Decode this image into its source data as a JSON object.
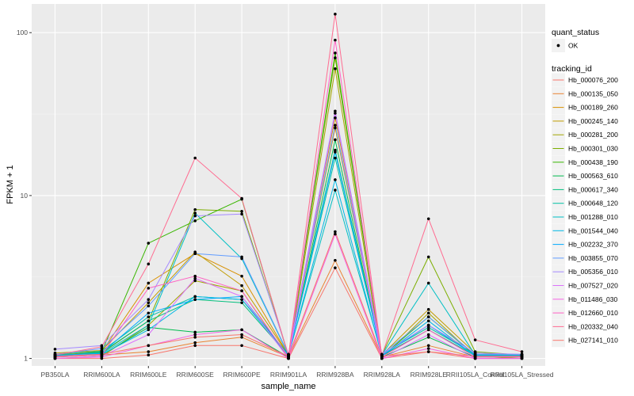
{
  "chart_data": {
    "type": "line",
    "xlabel": "sample_name",
    "ylabel": "FPKM + 1",
    "y_scale": "log10",
    "ylim": [
      0.9,
      150
    ],
    "y_ticks": [
      {
        "value": 1,
        "label": "1"
      },
      {
        "value": 10,
        "label": "10"
      },
      {
        "value": 100,
        "label": "100"
      }
    ],
    "categories": [
      "PB350LA",
      "RRIM600LA",
      "RRIM600LE",
      "RRIM600SE",
      "RRIM600PE",
      "RRIM901LA",
      "RRIM928BA",
      "RRIM928LA",
      "RRIM928LE",
      "RRII105LA_Control",
      "RRII105LA_Stressed"
    ],
    "legend_shape": {
      "title": "quant_status",
      "entries": [
        "OK"
      ]
    },
    "legend_color_title": "tracking_id",
    "series": [
      {
        "name": "Hb_000076_200",
        "color": "#F8766D",
        "values": [
          1.0,
          1.0,
          1.05,
          1.2,
          1.2,
          1.0,
          3.6,
          1.0,
          1.1,
          1.0,
          1.0
        ]
      },
      {
        "name": "Hb_000135_050",
        "color": "#EA8331",
        "values": [
          1.02,
          1.05,
          1.1,
          1.25,
          1.35,
          1.02,
          4.0,
          1.02,
          1.2,
          1.02,
          1.02
        ]
      },
      {
        "name": "Hb_000189_260",
        "color": "#D89000",
        "values": [
          1.05,
          1.1,
          2.9,
          4.4,
          3.2,
          1.05,
          26.0,
          1.05,
          1.6,
          1.05,
          1.05
        ]
      },
      {
        "name": "Hb_000245_140",
        "color": "#C09B00",
        "values": [
          1.08,
          1.12,
          2.2,
          4.5,
          2.8,
          1.05,
          30.0,
          1.05,
          2.0,
          1.08,
          1.05
        ]
      },
      {
        "name": "Hb_000281_200",
        "color": "#A3A500",
        "values": [
          1.0,
          1.03,
          1.6,
          3.0,
          2.6,
          1.0,
          60.0,
          1.0,
          1.9,
          1.03,
          1.0
        ]
      },
      {
        "name": "Hb_000301_030",
        "color": "#7CAE00",
        "values": [
          1.05,
          1.08,
          1.7,
          8.2,
          8.0,
          1.05,
          70.0,
          1.05,
          4.2,
          1.1,
          1.05
        ]
      },
      {
        "name": "Hb_000438_190",
        "color": "#39B600",
        "values": [
          1.03,
          1.1,
          5.1,
          7.0,
          9.5,
          1.03,
          75.0,
          1.03,
          1.8,
          1.05,
          1.03
        ]
      },
      {
        "name": "Hb_000563_610",
        "color": "#00BB4E",
        "values": [
          1.02,
          1.05,
          1.55,
          1.45,
          1.5,
          1.02,
          22.0,
          1.02,
          1.35,
          1.02,
          1.02
        ]
      },
      {
        "name": "Hb_000617_340",
        "color": "#00BF7D",
        "values": [
          1.04,
          1.09,
          1.7,
          2.3,
          2.2,
          1.04,
          19.0,
          1.04,
          1.5,
          1.04,
          1.04
        ]
      },
      {
        "name": "Hb_000648_120",
        "color": "#00C1A3",
        "values": [
          1.06,
          1.11,
          1.8,
          2.4,
          2.3,
          1.06,
          17.0,
          1.06,
          1.55,
          1.06,
          1.06
        ]
      },
      {
        "name": "Hb_001288_010",
        "color": "#00BFC4",
        "values": [
          1.05,
          1.07,
          1.6,
          7.8,
          4.1,
          1.05,
          10.8,
          1.05,
          2.9,
          1.05,
          1.05
        ]
      },
      {
        "name": "Hb_001544_040",
        "color": "#00B8E5",
        "values": [
          1.03,
          1.06,
          1.5,
          2.4,
          2.3,
          1.03,
          12.5,
          1.03,
          1.7,
          1.03,
          1.03
        ]
      },
      {
        "name": "Hb_002232_370",
        "color": "#00ABFD",
        "values": [
          1.04,
          1.08,
          1.9,
          2.3,
          2.4,
          1.04,
          18.5,
          1.04,
          1.6,
          1.04,
          1.04
        ]
      },
      {
        "name": "Hb_003855_070",
        "color": "#619CFF",
        "values": [
          1.06,
          1.15,
          2.1,
          4.4,
          4.2,
          1.06,
          27.0,
          1.06,
          1.8,
          1.06,
          1.06
        ]
      },
      {
        "name": "Hb_005356_010",
        "color": "#A58AFF",
        "values": [
          1.14,
          1.2,
          2.3,
          7.5,
          7.7,
          1.06,
          33.0,
          1.06,
          1.6,
          1.08,
          1.06
        ]
      },
      {
        "name": "Hb_007527_020",
        "color": "#DB72FB",
        "values": [
          1.0,
          1.03,
          1.4,
          3.1,
          2.4,
          1.0,
          32.0,
          1.0,
          1.4,
          1.0,
          1.0
        ]
      },
      {
        "name": "Hb_011486_030",
        "color": "#F564E3",
        "values": [
          1.0,
          1.02,
          1.2,
          1.4,
          1.5,
          1.0,
          5.8,
          1.0,
          1.15,
          1.0,
          1.0
        ]
      },
      {
        "name": "Hb_012660_010",
        "color": "#FF61C3",
        "values": [
          1.02,
          1.05,
          2.7,
          3.2,
          2.6,
          1.02,
          90.0,
          1.02,
          1.5,
          1.02,
          1.02
        ]
      },
      {
        "name": "Hb_020332_040",
        "color": "#FF6C91",
        "values": [
          1.05,
          1.18,
          3.8,
          17.0,
          9.6,
          1.04,
          130.0,
          1.04,
          7.2,
          1.3,
          1.1
        ]
      },
      {
        "name": "Hb_027141_010",
        "color": "#F8766D",
        "values": [
          1.03,
          1.06,
          1.2,
          1.35,
          1.4,
          1.03,
          6.0,
          1.03,
          1.1,
          1.03,
          1.03
        ]
      }
    ]
  }
}
